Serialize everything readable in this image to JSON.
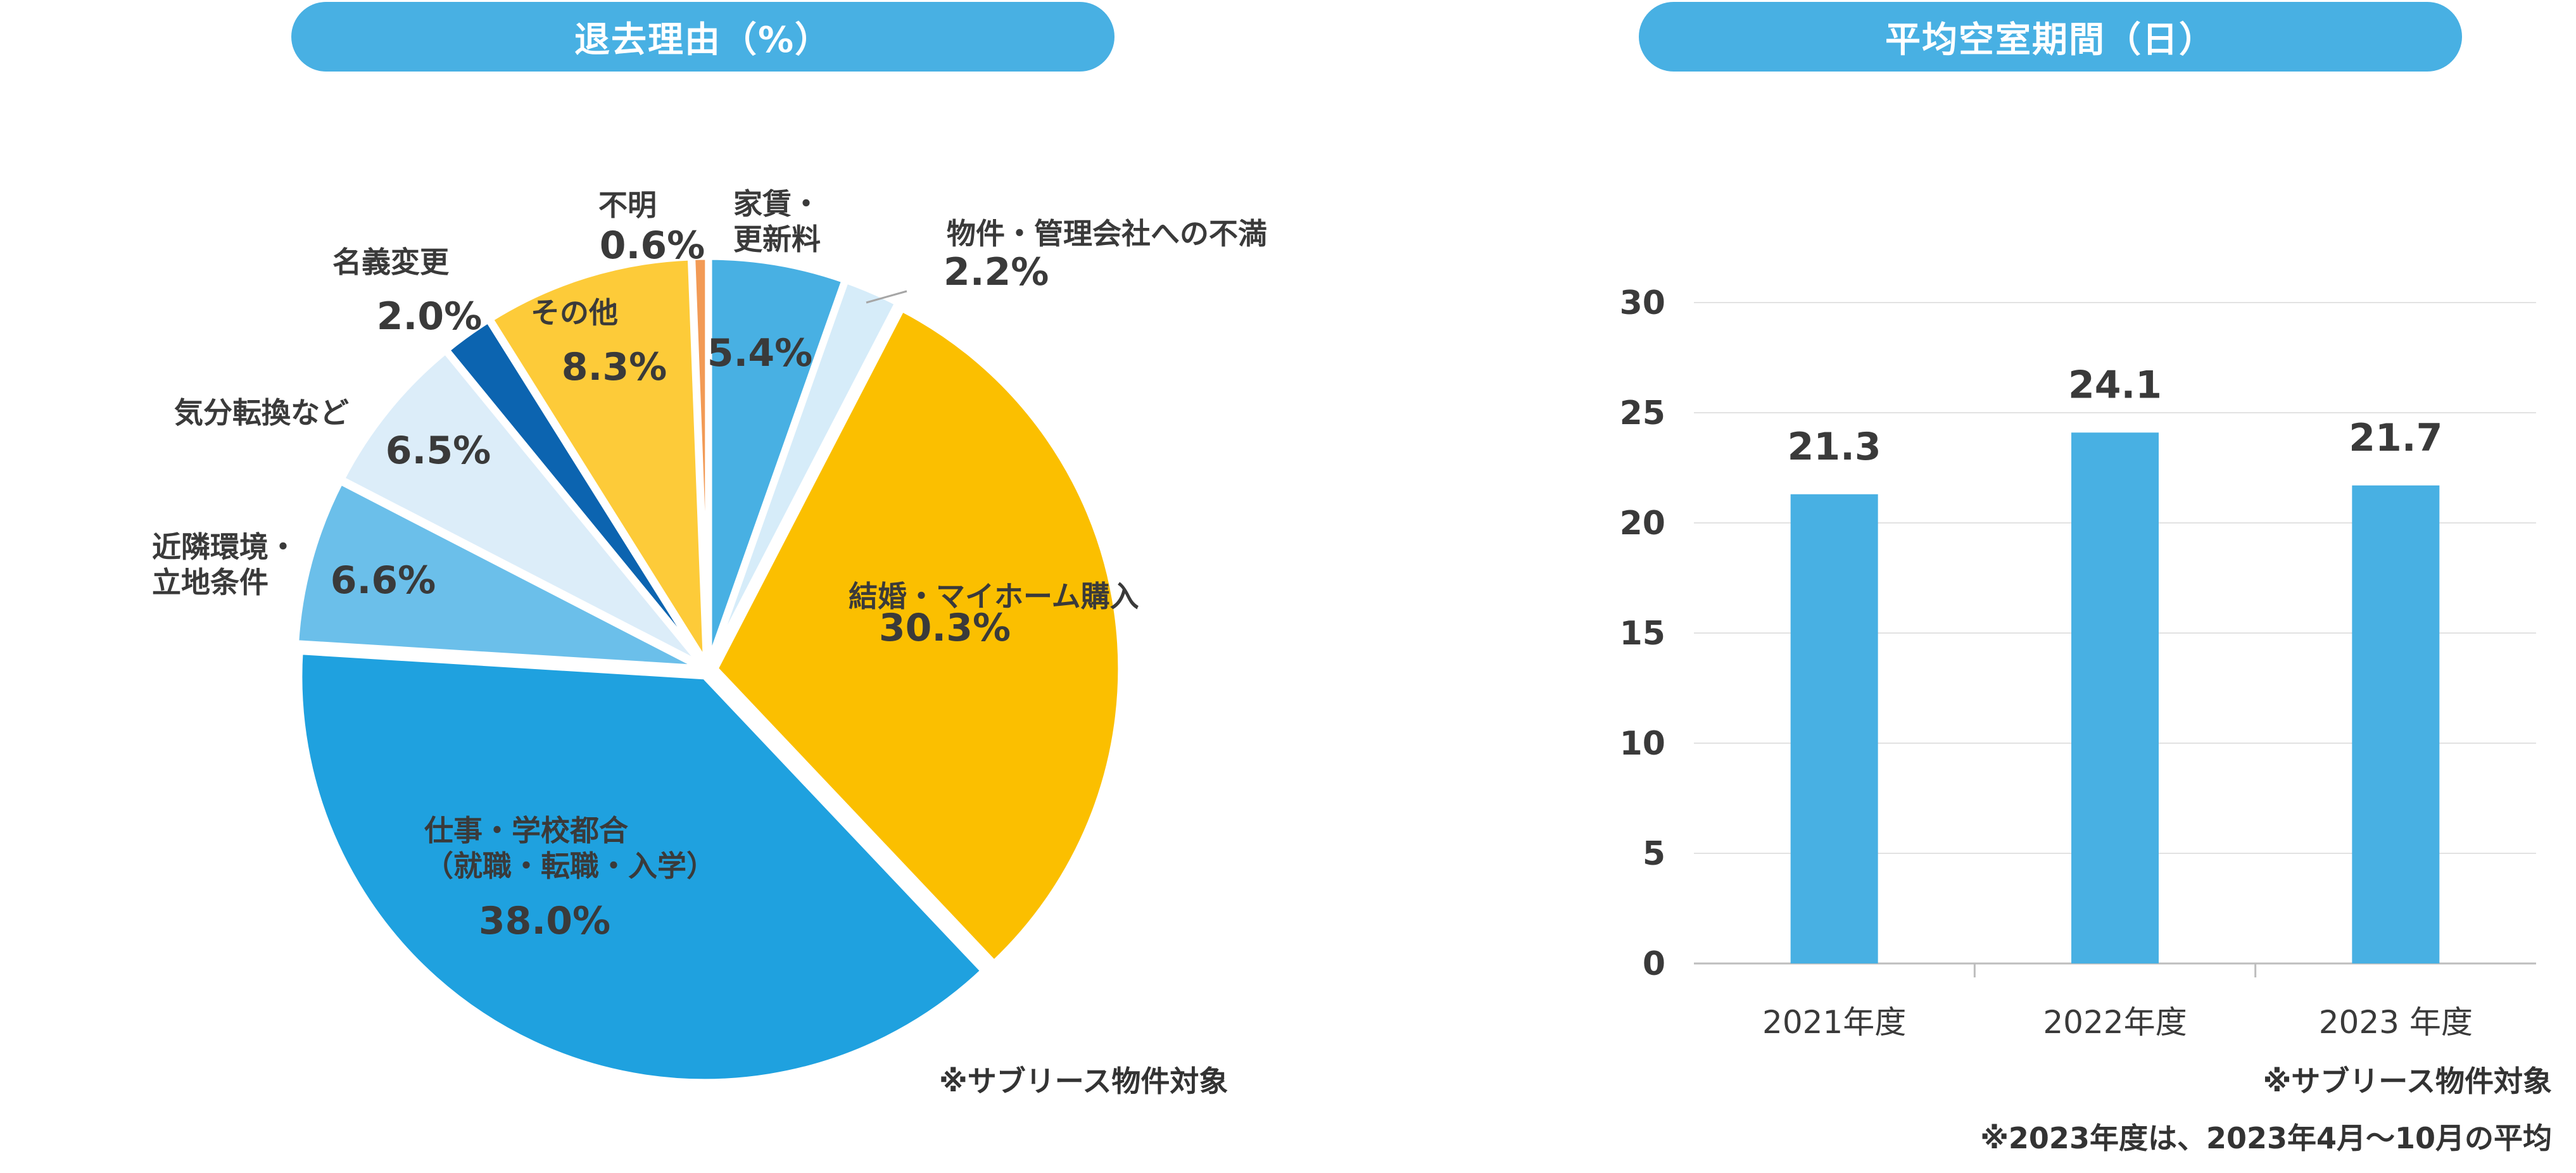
{
  "left_title": "退去理由（%）",
  "right_title": "平均空室期間（日）",
  "left_note": "※サブリース物件対象",
  "right_note": "※サブリース物件対象",
  "right_footnote": "※2023年度は、2023年4月～10月の平均",
  "chart_data": [
    {
      "type": "pie",
      "title": "退去理由（%）",
      "slices": [
        {
          "label_lines": [
            "家賃・",
            "更新料"
          ],
          "value": 5.4,
          "value_text": "5.4%",
          "color": "#48b0e3"
        },
        {
          "label_lines": [
            "物件・管理会社への不満"
          ],
          "value": 2.2,
          "value_text": "2.2%",
          "color": "#d6ecf9"
        },
        {
          "label_lines": [
            "結婚・マイホーム購入"
          ],
          "value": 30.3,
          "value_text": "30.3%",
          "color": "#fbbf00"
        },
        {
          "label_lines": [
            "仕事・学校都合",
            "（就職・転職・入学）"
          ],
          "value": 38.0,
          "value_text": "38.0%",
          "color": "#1fa1df"
        },
        {
          "label_lines": [
            "近隣環境・",
            "立地条件"
          ],
          "value": 6.6,
          "value_text": "6.6%",
          "color": "#6bbfea"
        },
        {
          "label_lines": [
            "気分転換など"
          ],
          "value": 6.5,
          "value_text": "6.5%",
          "color": "#dcedf9"
        },
        {
          "label_lines": [
            "名義変更"
          ],
          "value": 2.0,
          "value_text": "2.0%",
          "color": "#0c64b0"
        },
        {
          "label_lines": [
            "その他"
          ],
          "value": 8.3,
          "value_text": "8.3%",
          "color": "#fdcb39"
        },
        {
          "label_lines": [
            "不明"
          ],
          "value": 0.6,
          "value_text": "0.6%",
          "color": "#f29a55"
        }
      ]
    },
    {
      "type": "bar",
      "title": "平均空室期間（日）",
      "categories": [
        "2021年度",
        "2022年度",
        "2023 年度"
      ],
      "values": [
        21.3,
        24.1,
        21.7
      ],
      "value_labels": [
        "21.3",
        "24.1",
        "21.7"
      ],
      "ylim": [
        0,
        30
      ],
      "yticks": [
        "0",
        "5",
        "10",
        "15",
        "20",
        "25",
        "30"
      ],
      "bar_color": "#48b0e3",
      "grid": true
    }
  ]
}
